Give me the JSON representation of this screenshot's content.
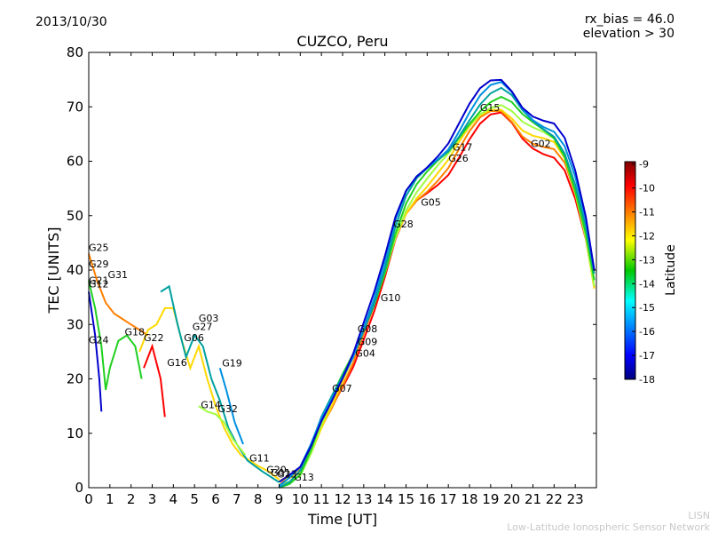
{
  "header": {
    "date": "2013/10/30",
    "rx_bias": "rx_bias = 46.0",
    "elevation": "elevation > 30"
  },
  "footer": {
    "line1": "LISN",
    "line2": "Low-Latitude Ionospheric Sensor Network"
  },
  "chart_data": {
    "type": "scatter",
    "title": "CUZCO, Peru",
    "xlabel": "Time [UT]",
    "ylabel": "TEC [UNITS]",
    "xlim": [
      0,
      24
    ],
    "ylim": [
      0,
      80
    ],
    "xticks": [
      "0",
      "1",
      "2",
      "3",
      "4",
      "5",
      "6",
      "7",
      "8",
      "9",
      "10",
      "11",
      "12",
      "13",
      "14",
      "15",
      "16",
      "17",
      "18",
      "19",
      "20",
      "21",
      "22",
      "23"
    ],
    "yticks": [
      "0",
      "10",
      "20",
      "30",
      "40",
      "50",
      "60",
      "70",
      "80"
    ],
    "colorbar": {
      "label": "Latitude",
      "range": [
        -18,
        -8.9
      ],
      "ticks": [
        "-9",
        "-10",
        "-11",
        "-12",
        "-13",
        "-14",
        "-15",
        "-16",
        "-17",
        "-18"
      ]
    },
    "satellite_labels": [
      {
        "name": "G25",
        "t": 0.0,
        "tec": 43.5
      },
      {
        "name": "G29",
        "t": 0.0,
        "tec": 40.5
      },
      {
        "name": "G31",
        "t": 0.9,
        "tec": 38.5
      },
      {
        "name": "G21",
        "t": 0.0,
        "tec": 37.5
      },
      {
        "name": "G12",
        "t": 0.0,
        "tec": 36.8
      },
      {
        "name": "G24",
        "t": 0.0,
        "tec": 26.5
      },
      {
        "name": "G18",
        "t": 1.7,
        "tec": 28.0
      },
      {
        "name": "G22",
        "t": 2.6,
        "tec": 26.9
      },
      {
        "name": "G16",
        "t": 3.7,
        "tec": 22.4
      },
      {
        "name": "G03",
        "t": 5.2,
        "tec": 30.5
      },
      {
        "name": "G27",
        "t": 4.9,
        "tec": 29.0
      },
      {
        "name": "G06",
        "t": 4.5,
        "tec": 26.9
      },
      {
        "name": "G19",
        "t": 6.3,
        "tec": 22.3
      },
      {
        "name": "G14",
        "t": 5.3,
        "tec": 14.6
      },
      {
        "name": "G32",
        "t": 6.1,
        "tec": 13.9
      },
      {
        "name": "G11",
        "t": 7.6,
        "tec": 4.8
      },
      {
        "name": "G20",
        "t": 8.4,
        "tec": 2.7
      },
      {
        "name": "G01",
        "t": 8.6,
        "tec": 2.1
      },
      {
        "name": "G23",
        "t": 8.9,
        "tec": 1.9
      },
      {
        "name": "G13",
        "t": 9.7,
        "tec": 1.3
      },
      {
        "name": "G07",
        "t": 11.5,
        "tec": 17.6
      },
      {
        "name": "G08",
        "t": 12.7,
        "tec": 28.6
      },
      {
        "name": "G09",
        "t": 12.7,
        "tec": 26.2
      },
      {
        "name": "G04",
        "t": 12.6,
        "tec": 24.1
      },
      {
        "name": "G10",
        "t": 13.8,
        "tec": 34.3
      },
      {
        "name": "G28",
        "t": 14.4,
        "tec": 47.8
      },
      {
        "name": "G05",
        "t": 15.7,
        "tec": 51.8
      },
      {
        "name": "G17",
        "t": 17.2,
        "tec": 62.0
      },
      {
        "name": "G26",
        "t": 17.0,
        "tec": 59.9
      },
      {
        "name": "G15",
        "t": 18.5,
        "tec": 69.2
      },
      {
        "name": "G02",
        "t": 20.9,
        "tec": 62.6
      }
    ]
  }
}
